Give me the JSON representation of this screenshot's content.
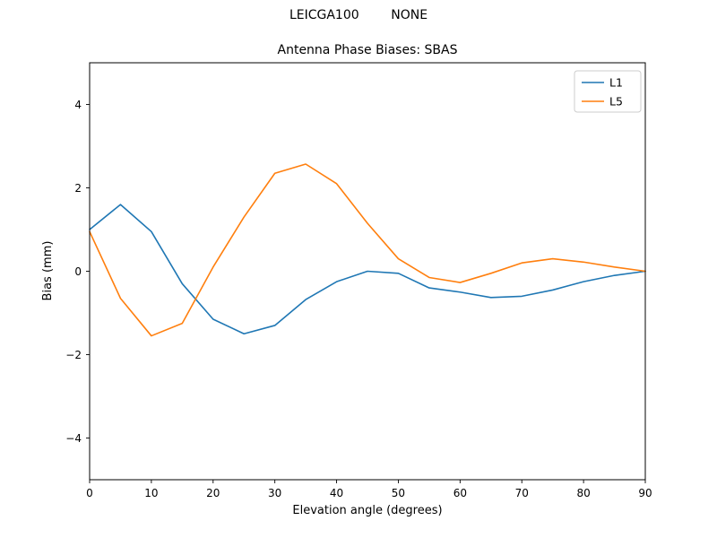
{
  "figure": {
    "suptitle": "LEICGA100        NONE"
  },
  "chart_data": {
    "type": "line",
    "suptitle": "LEICGA100        NONE",
    "title": "Antenna Phase Biases: SBAS",
    "xlabel": "Elevation angle (degrees)",
    "ylabel": "Bias (mm)",
    "xlim": [
      0,
      90
    ],
    "ylim": [
      -5,
      5
    ],
    "xticks": [
      0,
      10,
      20,
      30,
      40,
      50,
      60,
      70,
      80,
      90
    ],
    "yticks": [
      -4,
      -2,
      0,
      2,
      4
    ],
    "grid": false,
    "legend_position": "upper right",
    "x": [
      0,
      5,
      10,
      15,
      20,
      25,
      30,
      35,
      40,
      45,
      50,
      55,
      60,
      65,
      70,
      75,
      80,
      85,
      90
    ],
    "series": [
      {
        "name": "L1",
        "color": "#1f77b4",
        "values": [
          1.0,
          1.6,
          0.95,
          -0.3,
          -1.15,
          -1.5,
          -1.3,
          -0.68,
          -0.25,
          0.0,
          -0.05,
          -0.4,
          -0.5,
          -0.63,
          -0.6,
          -0.45,
          -0.25,
          -0.1,
          0.0
        ]
      },
      {
        "name": "L5",
        "color": "#ff7f0e",
        "values": [
          0.95,
          -0.65,
          -1.55,
          -1.25,
          0.1,
          1.3,
          2.35,
          2.57,
          2.1,
          1.15,
          0.3,
          -0.15,
          -0.27,
          -0.05,
          0.2,
          0.3,
          0.22,
          0.1,
          0.0
        ]
      }
    ]
  }
}
